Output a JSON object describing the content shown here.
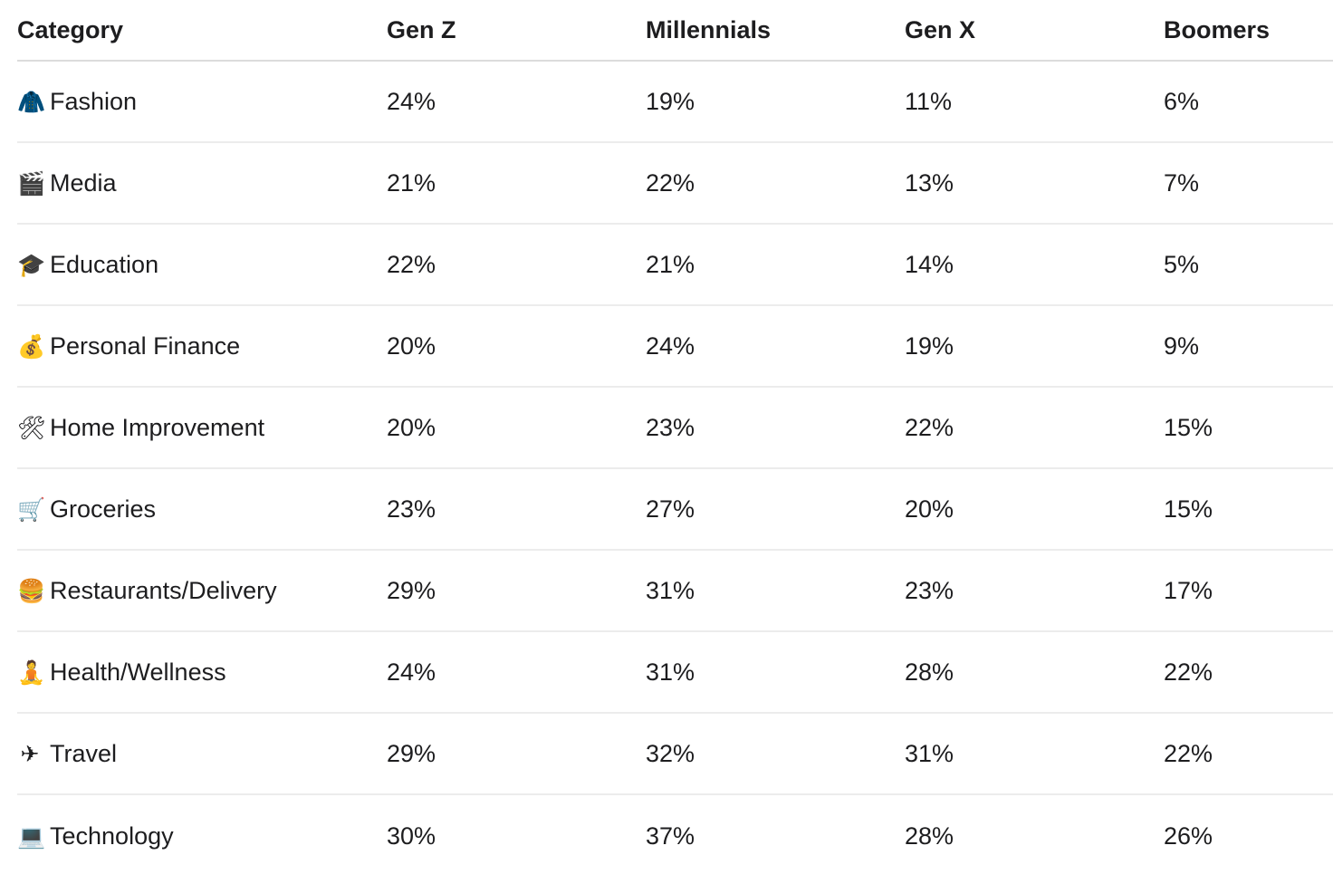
{
  "chart_data": {
    "type": "table",
    "columns": [
      "Category",
      "Gen Z",
      "Millennials",
      "Gen X",
      "Boomers"
    ],
    "rows": [
      {
        "icon": "coat-icon",
        "glyph": "🧥",
        "category": "Fashion",
        "values": [
          "24%",
          "19%",
          "11%",
          "6%"
        ]
      },
      {
        "icon": "clapperboard-icon",
        "glyph": "🎬",
        "category": "Media",
        "values": [
          "21%",
          "22%",
          "13%",
          "7%"
        ]
      },
      {
        "icon": "graduation-cap-icon",
        "glyph": "🎓",
        "category": "Education",
        "values": [
          "22%",
          "21%",
          "14%",
          "5%"
        ]
      },
      {
        "icon": "money-bag-icon",
        "glyph": "💰",
        "category": "Personal Finance",
        "values": [
          "20%",
          "24%",
          "19%",
          "9%"
        ]
      },
      {
        "icon": "hammer-wrench-icon",
        "glyph": "🛠",
        "category": "Home Improvement",
        "values": [
          "20%",
          "23%",
          "22%",
          "15%"
        ]
      },
      {
        "icon": "shopping-cart-icon",
        "glyph": "🛒",
        "category": "Groceries",
        "values": [
          "23%",
          "27%",
          "20%",
          "15%"
        ]
      },
      {
        "icon": "burger-icon",
        "glyph": "🍔",
        "category": "Restaurants/Delivery",
        "values": [
          "29%",
          "31%",
          "23%",
          "17%"
        ]
      },
      {
        "icon": "meditation-icon",
        "glyph": "🧘",
        "category": "Health/Wellness",
        "values": [
          "24%",
          "31%",
          "28%",
          "22%"
        ]
      },
      {
        "icon": "airplane-icon",
        "glyph": "✈",
        "category": "Travel",
        "values": [
          "29%",
          "32%",
          "31%",
          "22%"
        ]
      },
      {
        "icon": "laptop-icon",
        "glyph": "💻",
        "category": "Technology",
        "values": [
          "30%",
          "37%",
          "28%",
          "26%"
        ]
      }
    ]
  }
}
